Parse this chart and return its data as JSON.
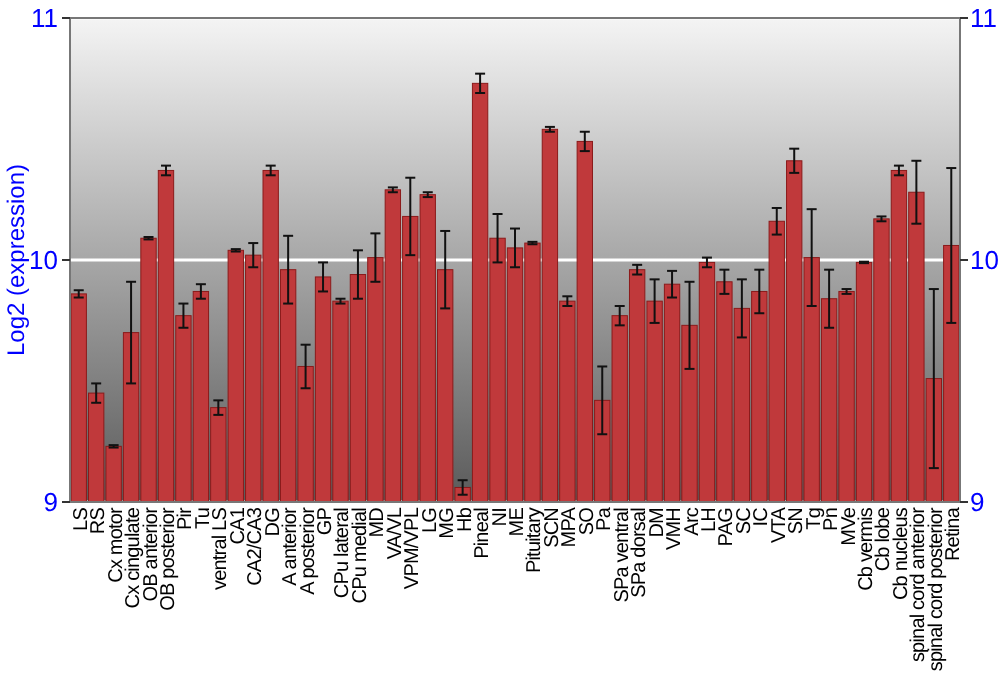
{
  "chart_data": {
    "type": "bar",
    "ylabel": "Log2 (expression)",
    "categories": [
      "LS",
      "RS",
      "Cx motor",
      "Cx cingulate",
      "OB anterior",
      "OB posterior",
      "Pir",
      "Tu",
      "ventral LS",
      "CA1",
      "CA2/CA3",
      "DG",
      "A anterior",
      "A posterior",
      "GP",
      "CPu lateral",
      "CPu medial",
      "MD",
      "VA/VL",
      "VPM/VPL",
      "LG",
      "MG",
      "Hb",
      "Pineal",
      "NI",
      "ME",
      "Pituitary",
      "SCN",
      "MPA",
      "SO",
      "Pa",
      "SPa ventral",
      "SPa dorsal",
      "DM",
      "VMH",
      "Arc",
      "LH",
      "PAG",
      "SC",
      "IC",
      "VTA",
      "SN",
      "Tg",
      "Pn",
      "MVe",
      "Cb vermis",
      "Cb lobe",
      "Cb nucleus",
      "spinal cord anterior",
      "spinal cord posterior",
      "Retina"
    ],
    "values": [
      9.86,
      9.45,
      9.23,
      9.7,
      10.09,
      10.37,
      9.77,
      9.87,
      9.39,
      10.04,
      10.02,
      10.37,
      9.96,
      9.56,
      9.93,
      9.83,
      9.94,
      10.01,
      10.29,
      10.18,
      10.27,
      9.96,
      9.06,
      10.73,
      10.09,
      10.05,
      10.07,
      10.54,
      9.83,
      10.49,
      9.42,
      9.77,
      9.96,
      9.83,
      9.9,
      9.73,
      9.99,
      9.91,
      9.8,
      9.87,
      10.16,
      10.41,
      10.01,
      9.84,
      9.87,
      9.99,
      10.17,
      10.37,
      10.28,
      9.51,
      10.06
    ],
    "errors": [
      0.015,
      0.04,
      0.005,
      0.21,
      0.005,
      0.02,
      0.05,
      0.03,
      0.03,
      0.005,
      0.05,
      0.02,
      0.14,
      0.09,
      0.06,
      0.01,
      0.1,
      0.1,
      0.01,
      0.16,
      0.01,
      0.16,
      0.03,
      0.04,
      0.1,
      0.08,
      0.005,
      0.01,
      0.02,
      0.04,
      0.14,
      0.04,
      0.02,
      0.09,
      0.055,
      0.18,
      0.02,
      0.05,
      0.12,
      0.09,
      0.055,
      0.05,
      0.2,
      0.12,
      0.01,
      0.003,
      0.01,
      0.02,
      0.13,
      0.37,
      0.32
    ],
    "color": "#c0393b",
    "ylim": [
      9,
      11
    ],
    "yticks": [
      9,
      10,
      11
    ],
    "y2lim": [
      9,
      11
    ],
    "y2ticks": [
      9,
      10,
      11
    ],
    "grid": "y"
  }
}
